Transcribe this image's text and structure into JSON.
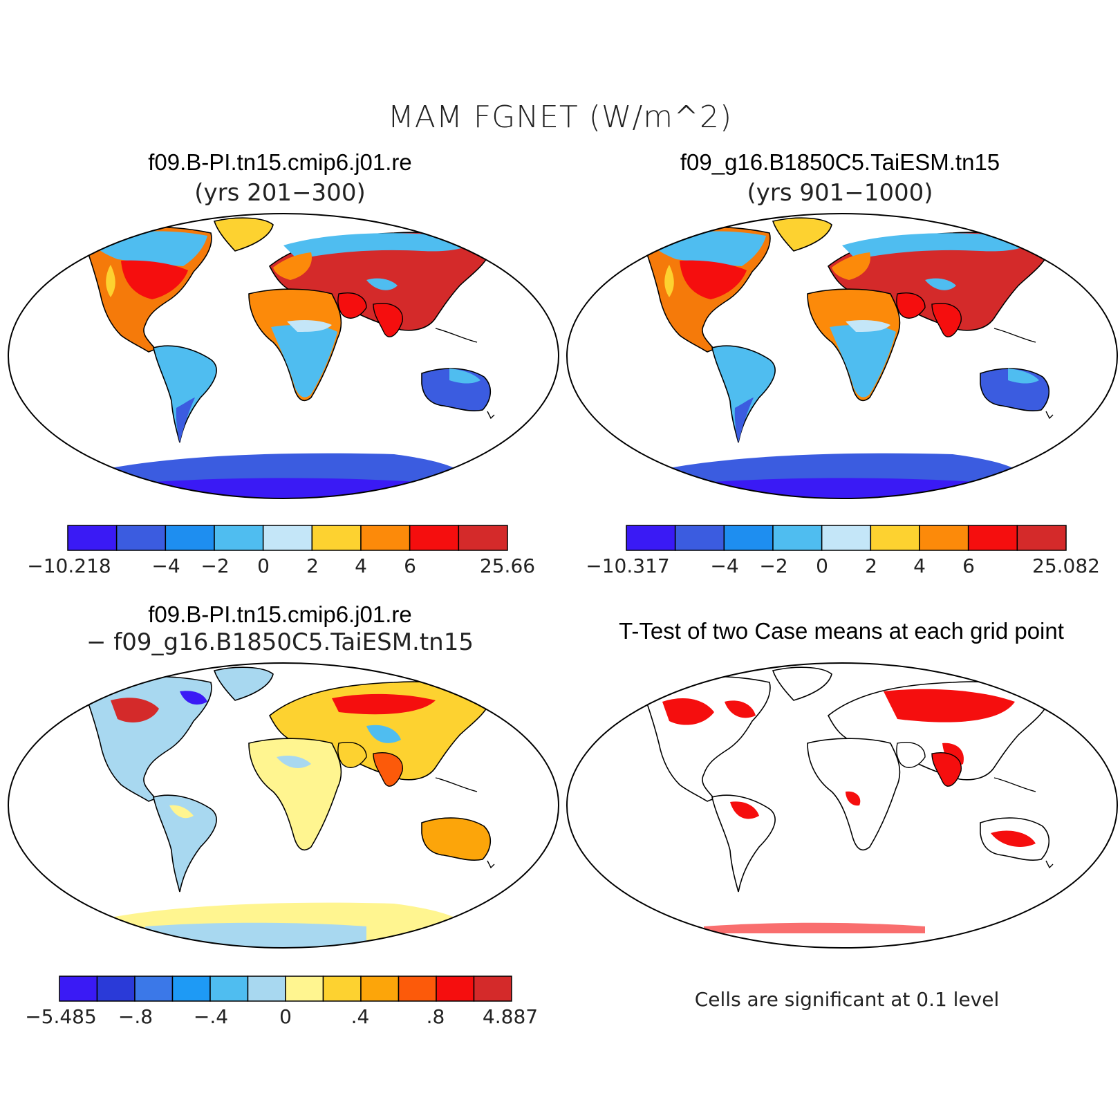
{
  "title": "MAM FGNET (W/m^2)",
  "panels": [
    {
      "id": "case1",
      "title": "f09.B-PI.tn15.cmip6.j01.re",
      "subtitle": "(yrs 201−300)"
    },
    {
      "id": "case2",
      "title": "f09_g16.B1850C5.TaiESM.tn15",
      "subtitle": "(yrs 901−1000)"
    },
    {
      "id": "diff",
      "title": "f09.B-PI.tn15.cmip6.j01.re",
      "subtitle": "− f09_g16.B1850C5.TaiESM.tn15"
    },
    {
      "id": "ttest",
      "title": "T-Test of two Case means at each grid point",
      "subtitle": ""
    }
  ],
  "colorbars": [
    {
      "panel": "case1",
      "colors": [
        "#3a1af5",
        "#3b5ce0",
        "#1e8ef0",
        "#4fbdf0",
        "#c4e6f8",
        "#fdd230",
        "#fc8a0a",
        "#f50e0e",
        "#d42a2a"
      ],
      "ticks": [
        "−10.218",
        "−4",
        "−2",
        "0",
        "2",
        "4",
        "6",
        "25.66"
      ]
    },
    {
      "panel": "case2",
      "colors": [
        "#3a1af5",
        "#3b5ce0",
        "#1e8ef0",
        "#4fbdf0",
        "#c4e6f8",
        "#fdd230",
        "#fc8a0a",
        "#f50e0e",
        "#d42a2a"
      ],
      "ticks": [
        "−10.317",
        "−4",
        "−2",
        "0",
        "2",
        "4",
        "6",
        "25.082"
      ]
    },
    {
      "panel": "diff",
      "colors": [
        "#3a1af5",
        "#2a3ad8",
        "#3b78e8",
        "#1e9af5",
        "#4fbdf0",
        "#a8d8f0",
        "#fff590",
        "#fdd230",
        "#fca50a",
        "#fc5a0a",
        "#f50e0e",
        "#d42a2a"
      ],
      "ticks": [
        "−5.485",
        "−.8",
        "−.4",
        "0",
        ".4",
        ".8",
        "4.887"
      ]
    }
  ],
  "significance_note": "Cells are significant at 0.1 level",
  "map_colors": {
    "ocean": "#ffffff",
    "significant": "#f50e0e",
    "coast": "#000000"
  }
}
